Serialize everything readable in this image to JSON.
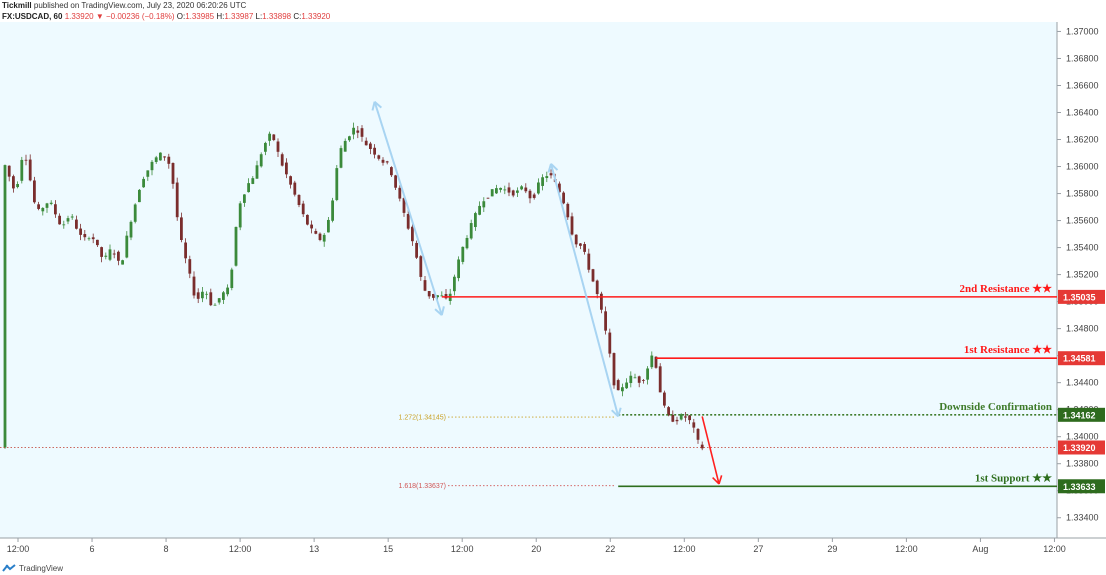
{
  "header": {
    "publisher": "Tickmill",
    "published_text": "published on TradingView.com, July 23, 2020 06:20:26 UTC",
    "symbol": "FX:USDCAD, 60",
    "last": "1.33920",
    "change_arrow": "▼",
    "change": "−0.00236 (−0.18%)",
    "o_label": "O:",
    "o_value": "1.33985",
    "h_label": "H:",
    "h_value": "1.33987",
    "l_label": "L:",
    "l_value": "1.33898",
    "c_label": "C:",
    "c_value": "1.33920"
  },
  "footer": {
    "brand": "TradingView",
    "logo_icon": "tradingview-logo-icon"
  },
  "colors": {
    "plot_bg": "#eefaff",
    "up": "#3b8a3b",
    "down": "#7a2d2d",
    "resistance": "#ff1a1a",
    "confirmation": "#3e7b2a",
    "support": "#2e6e1e",
    "fib1": "#c9a227",
    "fib2": "#d05555",
    "arrow_blue": "#a8d4f2",
    "arrow_red": "#ff2020"
  },
  "chart_data": {
    "type": "candlestick",
    "title": "",
    "xlabel": "",
    "ylabel": "",
    "ylim": [
      1.3325,
      1.3707
    ],
    "y_ticks": [
      "1.37000",
      "1.36800",
      "1.36600",
      "1.36400",
      "1.36200",
      "1.36000",
      "1.35800",
      "1.35600",
      "1.35400",
      "1.35200",
      "1.35000",
      "1.34800",
      "1.34600",
      "1.34400",
      "1.34200",
      "1.34000",
      "1.33800",
      "1.33600",
      "1.33400"
    ],
    "x_ticks": [
      "12:00",
      "6",
      "8",
      "12:00",
      "13",
      "15",
      "12:00",
      "20",
      "22",
      "12:00",
      "27",
      "29",
      "12:00",
      "Aug",
      "12:00"
    ],
    "price_path": [
      [
        0,
        1.3605
      ],
      [
        3,
        1.358
      ],
      [
        5,
        1.3615
      ],
      [
        8,
        1.3565
      ],
      [
        11,
        1.3575
      ],
      [
        14,
        1.3555
      ],
      [
        16,
        1.3565
      ],
      [
        19,
        1.3545
      ],
      [
        21,
        1.355
      ],
      [
        24,
        1.353
      ],
      [
        26,
        1.354
      ],
      [
        28,
        1.3525
      ],
      [
        30,
        1.3555
      ],
      [
        33,
        1.359
      ],
      [
        36,
        1.3605
      ],
      [
        38,
        1.361
      ],
      [
        40,
        1.36
      ],
      [
        42,
        1.355
      ],
      [
        44,
        1.3525
      ],
      [
        46,
        1.35
      ],
      [
        48,
        1.351
      ],
      [
        50,
        1.3495
      ],
      [
        52,
        1.3505
      ],
      [
        54,
        1.351
      ],
      [
        56,
        1.357
      ],
      [
        58,
        1.3585
      ],
      [
        60,
        1.3595
      ],
      [
        62,
        1.3615
      ],
      [
        64,
        1.3625
      ],
      [
        66,
        1.3605
      ],
      [
        68,
        1.359
      ],
      [
        70,
        1.3575
      ],
      [
        72,
        1.356
      ],
      [
        74,
        1.355
      ],
      [
        76,
        1.3545
      ],
      [
        78,
        1.3565
      ],
      [
        80,
        1.361
      ],
      [
        82,
        1.3622
      ],
      [
        84,
        1.363
      ],
      [
        86,
        1.3618
      ],
      [
        88,
        1.3612
      ],
      [
        90,
        1.3605
      ],
      [
        92,
        1.36
      ],
      [
        94,
        1.358
      ],
      [
        96,
        1.356
      ],
      [
        98,
        1.354
      ],
      [
        100,
        1.351
      ],
      [
        102,
        1.3503
      ],
      [
        104,
        1.3505
      ],
      [
        106,
        1.35
      ],
      [
        108,
        1.3525
      ],
      [
        110,
        1.3545
      ],
      [
        112,
        1.356
      ],
      [
        114,
        1.3575
      ],
      [
        116,
        1.358
      ],
      [
        118,
        1.3585
      ],
      [
        120,
        1.3582
      ],
      [
        122,
        1.358
      ],
      [
        124,
        1.3585
      ],
      [
        126,
        1.3575
      ],
      [
        128,
        1.359
      ],
      [
        130,
        1.3595
      ],
      [
        132,
        1.3585
      ],
      [
        134,
        1.357
      ],
      [
        136,
        1.3545
      ],
      [
        138,
        1.354
      ],
      [
        140,
        1.352
      ],
      [
        142,
        1.35
      ],
      [
        144,
        1.347
      ],
      [
        146,
        1.343
      ],
      [
        148,
        1.344
      ],
      [
        150,
        1.3445
      ],
      [
        152,
        1.344
      ],
      [
        154,
        1.3455
      ],
      [
        155,
        1.3465
      ],
      [
        156,
        1.344
      ],
      [
        158,
        1.3415
      ],
      [
        160,
        1.3412
      ],
      [
        162,
        1.3416
      ],
      [
        164,
        1.341
      ],
      [
        165,
        1.34
      ],
      [
        166,
        1.3392
      ]
    ],
    "price_label": "1.33920",
    "levels": [
      {
        "name": "2nd Resistance ★★",
        "value": 1.35035,
        "label": "1.35035",
        "kind": "resistance"
      },
      {
        "name": "1st Resistance ★★",
        "value": 1.34581,
        "label": "1.34581",
        "kind": "resistance"
      },
      {
        "name": "Downside Confirmation",
        "value": 1.34162,
        "label": "1.34162",
        "kind": "confirmation"
      },
      {
        "name": "1st Support ★★",
        "value": 1.33633,
        "label": "1.33633",
        "kind": "support"
      }
    ],
    "fib_labels": [
      {
        "text": "1.272(1.34145)",
        "value": 1.34145
      },
      {
        "text": "1.618(1.33637)",
        "value": 1.33637
      }
    ],
    "arrows": [
      {
        "kind": "blue",
        "from": [
          88,
          1.3648
        ],
        "to": [
          104,
          1.349
        ]
      },
      {
        "kind": "blue",
        "from": [
          130,
          1.3602
        ],
        "to": [
          146,
          1.3415
        ]
      },
      {
        "kind": "red",
        "from": [
          166,
          1.3415
        ],
        "to": [
          170,
          1.3365
        ]
      }
    ]
  }
}
